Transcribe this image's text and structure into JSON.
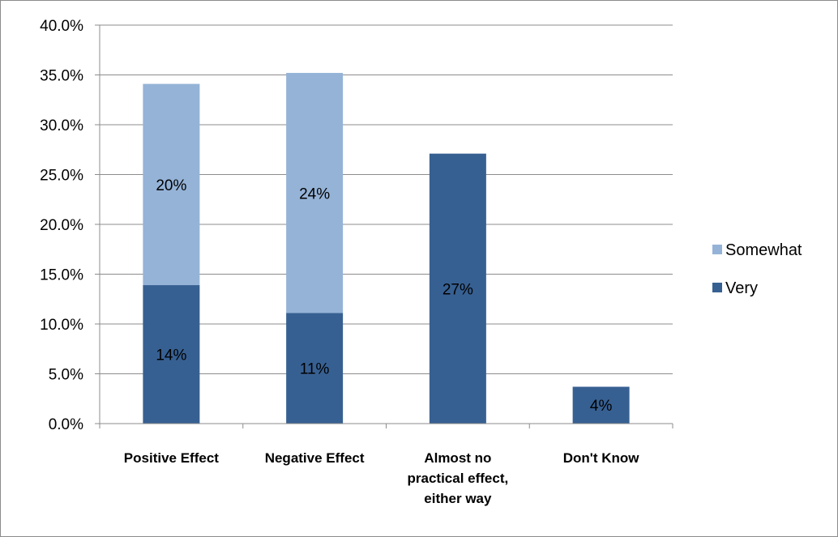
{
  "chart_data": {
    "type": "bar",
    "stacked": true,
    "categories": [
      [
        "Positive Effect"
      ],
      [
        "Negative Effect"
      ],
      [
        "Almost no",
        "practical effect,",
        "either way"
      ],
      [
        "Don't Know"
      ]
    ],
    "series": [
      {
        "name": "Very",
        "color": "#376092",
        "values": [
          0.139,
          0.111,
          0.271,
          0.037
        ],
        "labels": [
          "14%",
          "11%",
          "27%",
          "4%"
        ]
      },
      {
        "name": "Somewhat",
        "color": "#95b3d7",
        "values": [
          0.202,
          0.241,
          0,
          0
        ],
        "labels": [
          "20%",
          "24%",
          "",
          ""
        ]
      }
    ],
    "ylim": [
      0,
      0.4
    ],
    "yticks": [
      "0.0%",
      "5.0%",
      "10.0%",
      "15.0%",
      "20.0%",
      "25.0%",
      "30.0%",
      "35.0%",
      "40.0%"
    ],
    "legend": {
      "placement": "right",
      "entries": [
        {
          "name": "Somewhat",
          "color": "#95b3d7"
        },
        {
          "name": "Very",
          "color": "#376092"
        }
      ]
    },
    "grid": true,
    "title": "",
    "xlabel": "",
    "ylabel": ""
  }
}
